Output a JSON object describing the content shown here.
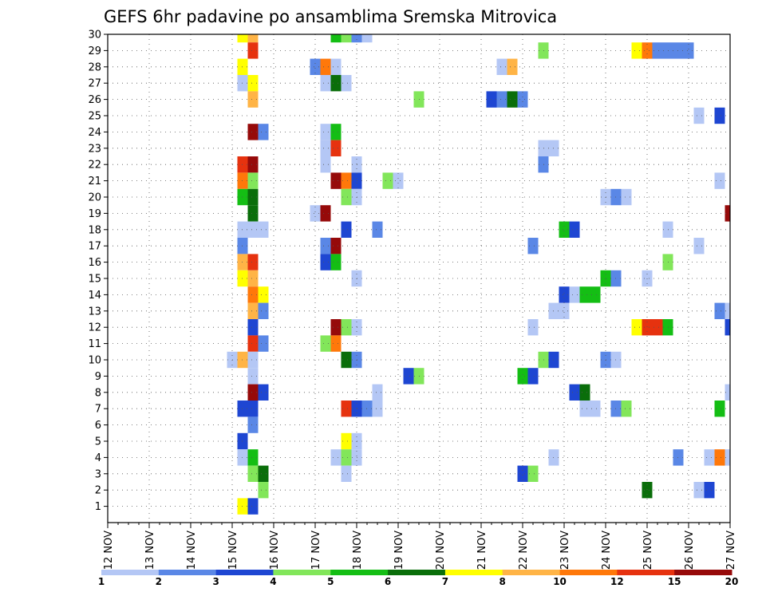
{
  "chart_data": {
    "type": "heatmap",
    "title": "GEFS 6hr padavine po ansamblima Sremska Mitrovica",
    "xlabel": "",
    "ylabel": "",
    "x_tick_labels": [
      "12 NOV",
      "13 NOV",
      "14 NOV",
      "15 NOV",
      "16 NOV",
      "17 NOV",
      "18 NOV",
      "19 NOV",
      "20 NOV",
      "21 NOV",
      "22 NOV",
      "23 NOV",
      "24 NOV",
      "25 NOV",
      "26 NOV",
      "27 NOV"
    ],
    "x_range": [
      12,
      27
    ],
    "y_range": [
      0,
      30
    ],
    "y_ticks": [
      1,
      2,
      3,
      4,
      5,
      6,
      7,
      8,
      9,
      10,
      11,
      12,
      13,
      14,
      15,
      16,
      17,
      18,
      19,
      20,
      21,
      22,
      23,
      24,
      25,
      26,
      27,
      28,
      29,
      30
    ],
    "grid": true,
    "colorbar": {
      "labels": [
        "1",
        "2",
        "3",
        "4",
        "5",
        "6",
        "7",
        "8",
        "10",
        "12",
        "15",
        "20"
      ],
      "colors": [
        "#b4c7f5",
        "#5a87e6",
        "#1e46d2",
        "#82e65a",
        "#14be14",
        "#0a6e0a",
        "#ffff00",
        "#ffb446",
        "#ff780a",
        "#e6320f",
        "#960a0a"
      ]
    },
    "cells": [
      {
        "x": 15.25,
        "y": 30,
        "v": 7
      },
      {
        "x": 15.5,
        "y": 30,
        "v": 8
      },
      {
        "x": 17.5,
        "y": 30,
        "v": 5
      },
      {
        "x": 17.75,
        "y": 30,
        "v": 4
      },
      {
        "x": 18,
        "y": 30,
        "v": 2
      },
      {
        "x": 18.25,
        "y": 30,
        "v": 1
      },
      {
        "x": 15.5,
        "y": 29,
        "v": 13
      },
      {
        "x": 22.5,
        "y": 29,
        "v": 4
      },
      {
        "x": 24.75,
        "y": 29,
        "v": 7
      },
      {
        "x": 25,
        "y": 29,
        "v": 11
      },
      {
        "x": 25.25,
        "y": 29,
        "v": 2
      },
      {
        "x": 25.5,
        "y": 29,
        "v": 2
      },
      {
        "x": 25.75,
        "y": 29,
        "v": 2
      },
      {
        "x": 26,
        "y": 29,
        "v": 2
      },
      {
        "x": 15.25,
        "y": 28,
        "v": 7
      },
      {
        "x": 17,
        "y": 28,
        "v": 2
      },
      {
        "x": 17.25,
        "y": 28,
        "v": 10
      },
      {
        "x": 17.5,
        "y": 28,
        "v": 1
      },
      {
        "x": 21.5,
        "y": 28,
        "v": 1
      },
      {
        "x": 21.75,
        "y": 28,
        "v": 9
      },
      {
        "x": 15.25,
        "y": 27,
        "v": 1
      },
      {
        "x": 15.5,
        "y": 27,
        "v": 7
      },
      {
        "x": 17.25,
        "y": 27,
        "v": 1
      },
      {
        "x": 17.5,
        "y": 27,
        "v": 6
      },
      {
        "x": 17.75,
        "y": 27,
        "v": 1
      },
      {
        "x": 15.5,
        "y": 26,
        "v": 9
      },
      {
        "x": 19.5,
        "y": 26,
        "v": 4
      },
      {
        "x": 21.25,
        "y": 26,
        "v": 3
      },
      {
        "x": 21.5,
        "y": 26,
        "v": 2
      },
      {
        "x": 21.75,
        "y": 26,
        "v": 6
      },
      {
        "x": 22,
        "y": 26,
        "v": 2
      },
      {
        "x": 26.25,
        "y": 25,
        "v": 1
      },
      {
        "x": 26.75,
        "y": 25,
        "v": 3
      },
      {
        "x": 15.5,
        "y": 24,
        "v": 15
      },
      {
        "x": 15.75,
        "y": 24,
        "v": 2
      },
      {
        "x": 17.25,
        "y": 24,
        "v": 1
      },
      {
        "x": 17.5,
        "y": 24,
        "v": 5
      },
      {
        "x": 17.25,
        "y": 23,
        "v": 1
      },
      {
        "x": 17.5,
        "y": 23,
        "v": 13
      },
      {
        "x": 22.5,
        "y": 23,
        "v": 1
      },
      {
        "x": 22.75,
        "y": 23,
        "v": 1
      },
      {
        "x": 15.25,
        "y": 22,
        "v": 13
      },
      {
        "x": 15.5,
        "y": 22,
        "v": 15
      },
      {
        "x": 17.25,
        "y": 22,
        "v": 1
      },
      {
        "x": 18,
        "y": 22,
        "v": 1
      },
      {
        "x": 22.5,
        "y": 22,
        "v": 2
      },
      {
        "x": 15.25,
        "y": 21,
        "v": 11
      },
      {
        "x": 15.5,
        "y": 21,
        "v": 4
      },
      {
        "x": 17.5,
        "y": 21,
        "v": 15
      },
      {
        "x": 17.75,
        "y": 21,
        "v": 11
      },
      {
        "x": 18,
        "y": 21,
        "v": 3
      },
      {
        "x": 18.75,
        "y": 21,
        "v": 4
      },
      {
        "x": 19,
        "y": 21,
        "v": 1
      },
      {
        "x": 26.75,
        "y": 21,
        "v": 1
      },
      {
        "x": 15.25,
        "y": 20,
        "v": 5
      },
      {
        "x": 15.5,
        "y": 20,
        "v": 6
      },
      {
        "x": 17.75,
        "y": 20,
        "v": 4
      },
      {
        "x": 18,
        "y": 20,
        "v": 1
      },
      {
        "x": 24,
        "y": 20,
        "v": 1
      },
      {
        "x": 24.25,
        "y": 20,
        "v": 2
      },
      {
        "x": 24.5,
        "y": 20,
        "v": 1
      },
      {
        "x": 15.5,
        "y": 19,
        "v": 6
      },
      {
        "x": 17,
        "y": 19,
        "v": 1
      },
      {
        "x": 17.25,
        "y": 19,
        "v": 15
      },
      {
        "x": 27,
        "y": 19,
        "v": 15
      },
      {
        "x": 15.25,
        "y": 18,
        "v": 1
      },
      {
        "x": 15.5,
        "y": 18,
        "v": 1
      },
      {
        "x": 15.75,
        "y": 18,
        "v": 1
      },
      {
        "x": 17.75,
        "y": 18,
        "v": 3
      },
      {
        "x": 18.5,
        "y": 18,
        "v": 2
      },
      {
        "x": 23,
        "y": 18,
        "v": 5
      },
      {
        "x": 23.25,
        "y": 18,
        "v": 3
      },
      {
        "x": 25.5,
        "y": 18,
        "v": 1
      },
      {
        "x": 15.25,
        "y": 17,
        "v": 2
      },
      {
        "x": 17.25,
        "y": 17,
        "v": 2
      },
      {
        "x": 17.5,
        "y": 17,
        "v": 15
      },
      {
        "x": 22.25,
        "y": 17,
        "v": 2
      },
      {
        "x": 26.25,
        "y": 17,
        "v": 1
      },
      {
        "x": 15.25,
        "y": 16,
        "v": 9
      },
      {
        "x": 15.5,
        "y": 16,
        "v": 13
      },
      {
        "x": 17.25,
        "y": 16,
        "v": 3
      },
      {
        "x": 17.5,
        "y": 16,
        "v": 5
      },
      {
        "x": 25.5,
        "y": 16,
        "v": 4
      },
      {
        "x": 15.25,
        "y": 15,
        "v": 7
      },
      {
        "x": 15.5,
        "y": 15,
        "v": 9
      },
      {
        "x": 18,
        "y": 15,
        "v": 1
      },
      {
        "x": 24,
        "y": 15,
        "v": 5
      },
      {
        "x": 24.25,
        "y": 15,
        "v": 2
      },
      {
        "x": 25,
        "y": 15,
        "v": 1
      },
      {
        "x": 15.5,
        "y": 14,
        "v": 11
      },
      {
        "x": 15.75,
        "y": 14,
        "v": 7
      },
      {
        "x": 23,
        "y": 14,
        "v": 3
      },
      {
        "x": 23.25,
        "y": 14,
        "v": 1
      },
      {
        "x": 23.5,
        "y": 14,
        "v": 5
      },
      {
        "x": 23.75,
        "y": 14,
        "v": 5
      },
      {
        "x": 15.5,
        "y": 13,
        "v": 9
      },
      {
        "x": 15.75,
        "y": 13,
        "v": 2
      },
      {
        "x": 22.75,
        "y": 13,
        "v": 1
      },
      {
        "x": 23,
        "y": 13,
        "v": 1
      },
      {
        "x": 26.75,
        "y": 13,
        "v": 2
      },
      {
        "x": 27,
        "y": 13,
        "v": 1
      },
      {
        "x": 15.5,
        "y": 12,
        "v": 3
      },
      {
        "x": 17.5,
        "y": 12,
        "v": 15
      },
      {
        "x": 17.75,
        "y": 12,
        "v": 4
      },
      {
        "x": 18,
        "y": 12,
        "v": 1
      },
      {
        "x": 22.25,
        "y": 12,
        "v": 1
      },
      {
        "x": 24.75,
        "y": 12,
        "v": 7
      },
      {
        "x": 25,
        "y": 12,
        "v": 13
      },
      {
        "x": 25.25,
        "y": 12,
        "v": 13
      },
      {
        "x": 25.5,
        "y": 12,
        "v": 5
      },
      {
        "x": 27,
        "y": 12,
        "v": 3
      },
      {
        "x": 15.5,
        "y": 11,
        "v": 13
      },
      {
        "x": 15.75,
        "y": 11,
        "v": 2
      },
      {
        "x": 17.25,
        "y": 11,
        "v": 4
      },
      {
        "x": 17.5,
        "y": 11,
        "v": 11
      },
      {
        "x": 15,
        "y": 10,
        "v": 1
      },
      {
        "x": 15.25,
        "y": 10,
        "v": 9
      },
      {
        "x": 15.5,
        "y": 10,
        "v": 1
      },
      {
        "x": 17.75,
        "y": 10,
        "v": 6
      },
      {
        "x": 18,
        "y": 10,
        "v": 2
      },
      {
        "x": 22.5,
        "y": 10,
        "v": 4
      },
      {
        "x": 22.75,
        "y": 10,
        "v": 3
      },
      {
        "x": 24,
        "y": 10,
        "v": 2
      },
      {
        "x": 24.25,
        "y": 10,
        "v": 1
      },
      {
        "x": 15.5,
        "y": 9,
        "v": 1
      },
      {
        "x": 19.25,
        "y": 9,
        "v": 3
      },
      {
        "x": 19.5,
        "y": 9,
        "v": 4
      },
      {
        "x": 22,
        "y": 9,
        "v": 5
      },
      {
        "x": 22.25,
        "y": 9,
        "v": 3
      },
      {
        "x": 15.5,
        "y": 8,
        "v": 15
      },
      {
        "x": 15.75,
        "y": 8,
        "v": 3
      },
      {
        "x": 18.5,
        "y": 8,
        "v": 1
      },
      {
        "x": 23.25,
        "y": 8,
        "v": 3
      },
      {
        "x": 23.5,
        "y": 8,
        "v": 6
      },
      {
        "x": 27,
        "y": 8,
        "v": 1
      },
      {
        "x": 15.25,
        "y": 7,
        "v": 3
      },
      {
        "x": 15.5,
        "y": 7,
        "v": 3
      },
      {
        "x": 17.75,
        "y": 7,
        "v": 13
      },
      {
        "x": 18,
        "y": 7,
        "v": 3
      },
      {
        "x": 18.25,
        "y": 7,
        "v": 2
      },
      {
        "x": 18.5,
        "y": 7,
        "v": 1
      },
      {
        "x": 23.5,
        "y": 7,
        "v": 1
      },
      {
        "x": 23.75,
        "y": 7,
        "v": 1
      },
      {
        "x": 24.25,
        "y": 7,
        "v": 2
      },
      {
        "x": 24.5,
        "y": 7,
        "v": 4
      },
      {
        "x": 26.75,
        "y": 7,
        "v": 5
      },
      {
        "x": 15.5,
        "y": 6,
        "v": 2
      },
      {
        "x": 15.25,
        "y": 5,
        "v": 3
      },
      {
        "x": 17.75,
        "y": 5,
        "v": 7
      },
      {
        "x": 18,
        "y": 5,
        "v": 1
      },
      {
        "x": 15.25,
        "y": 4,
        "v": 1
      },
      {
        "x": 15.5,
        "y": 4,
        "v": 5
      },
      {
        "x": 17.5,
        "y": 4,
        "v": 1
      },
      {
        "x": 17.75,
        "y": 4,
        "v": 4
      },
      {
        "x": 18,
        "y": 4,
        "v": 1
      },
      {
        "x": 22.75,
        "y": 4,
        "v": 1
      },
      {
        "x": 25.75,
        "y": 4,
        "v": 2
      },
      {
        "x": 26.5,
        "y": 4,
        "v": 1
      },
      {
        "x": 26.75,
        "y": 4,
        "v": 11
      },
      {
        "x": 27,
        "y": 4,
        "v": 1
      },
      {
        "x": 15.5,
        "y": 3,
        "v": 4
      },
      {
        "x": 15.75,
        "y": 3,
        "v": 6
      },
      {
        "x": 17.75,
        "y": 3,
        "v": 1
      },
      {
        "x": 22,
        "y": 3,
        "v": 3
      },
      {
        "x": 22.25,
        "y": 3,
        "v": 4
      },
      {
        "x": 15.75,
        "y": 2,
        "v": 4
      },
      {
        "x": 25,
        "y": 2,
        "v": 6
      },
      {
        "x": 26.25,
        "y": 2,
        "v": 1
      },
      {
        "x": 26.5,
        "y": 2,
        "v": 3
      },
      {
        "x": 15.25,
        "y": 1,
        "v": 7
      },
      {
        "x": 15.5,
        "y": 1,
        "v": 3
      }
    ]
  }
}
